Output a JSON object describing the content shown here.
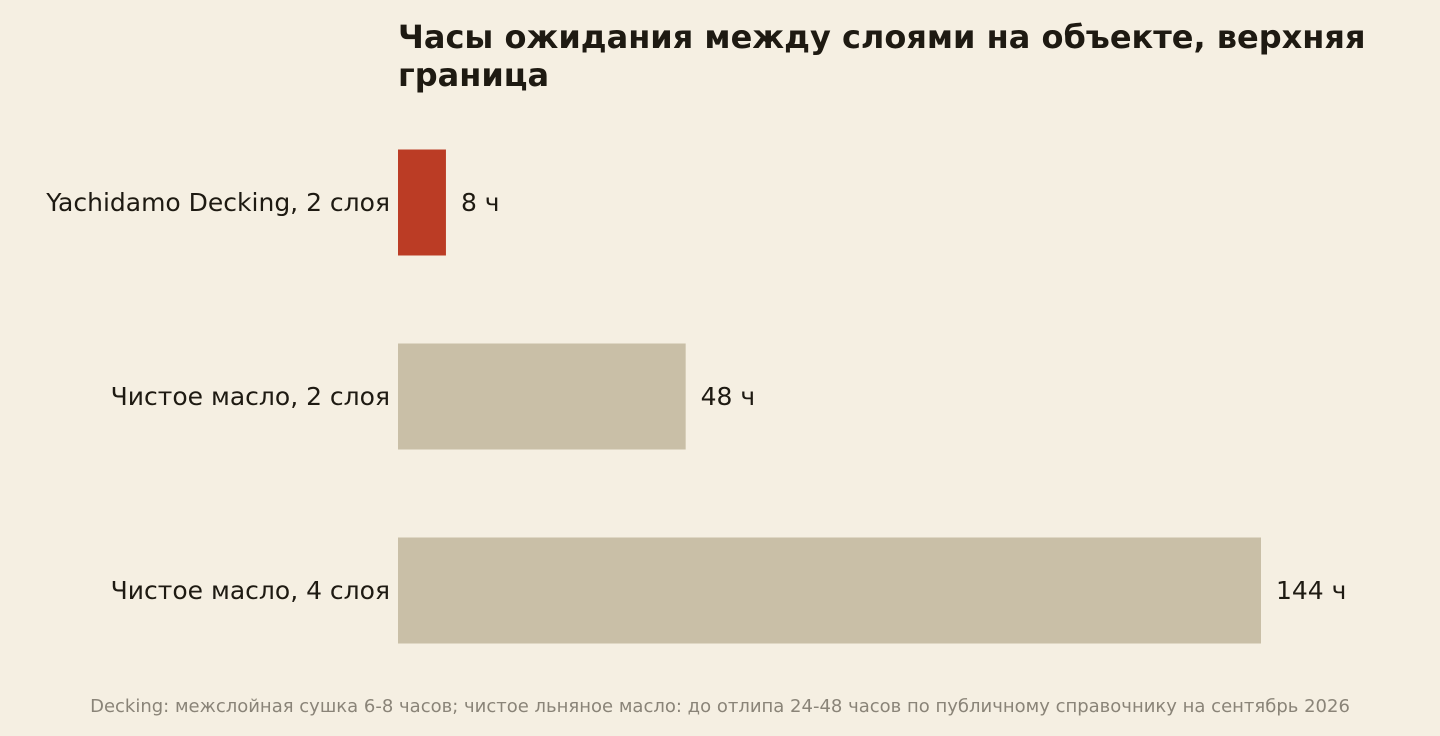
{
  "chart_data": {
    "type": "bar",
    "orientation": "horizontal",
    "title": "Часы ожидания между слоями на объекте, верхняя граница",
    "categories": [
      "Yachidamo Decking, 2 слоя",
      "Чистое масло, 2 слоя",
      "Чистое масло, 4 слоя"
    ],
    "values": [
      8,
      48,
      144
    ],
    "value_labels": [
      "8 ч",
      "48 ч",
      "144 ч"
    ],
    "bar_colors": [
      "#bb3c25",
      "#c9bfa7",
      "#c9bfa7"
    ],
    "xlim": [
      0,
      144
    ],
    "grid": false,
    "xlabel": "",
    "ylabel": ""
  },
  "footnote": "Decking: межслойная сушка 6-8 часов; чистое льняное масло: до отлипа 24-48 часов по публичному справочнику на сентябрь 2026",
  "colors": {
    "background": "#f5efe2",
    "text": "#1e1a12",
    "muted_text": "#8a8478",
    "highlight": "#bb3c25",
    "neutral_bar": "#c9bfa7"
  }
}
